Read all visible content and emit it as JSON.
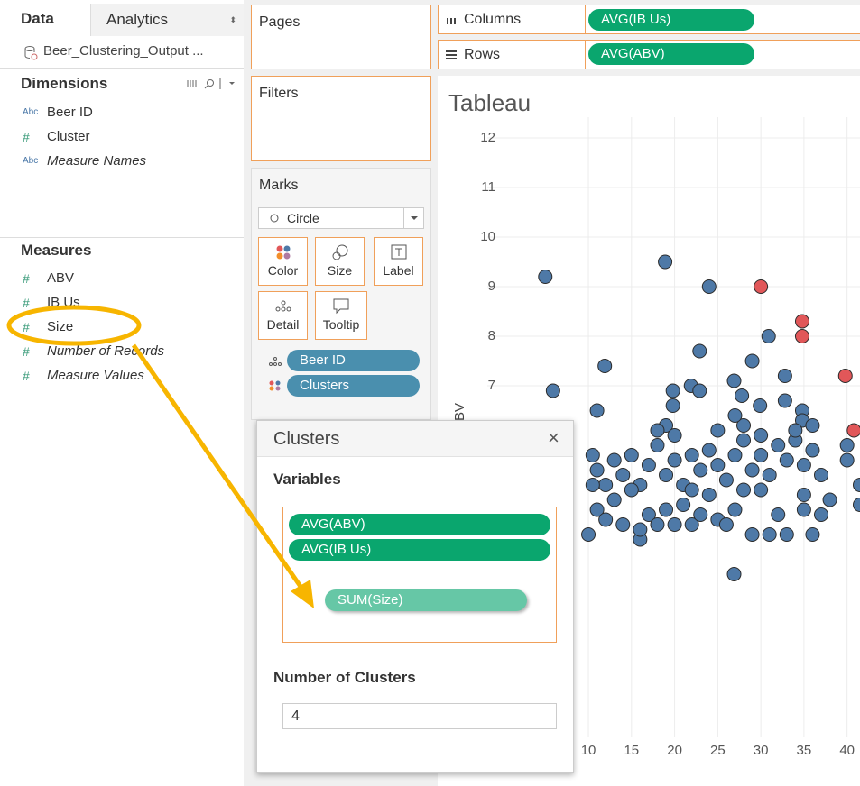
{
  "tabs": {
    "data": "Data",
    "analytics": "Analytics"
  },
  "datasource": "Beer_Clustering_Output ...",
  "dimensions": {
    "title": "Dimensions",
    "items": [
      {
        "icon": "Abc",
        "label": "Beer ID"
      },
      {
        "icon": "#",
        "label": "Cluster"
      },
      {
        "icon": "Abc",
        "label": "Measure Names"
      }
    ]
  },
  "measures": {
    "title": "Measures",
    "items": [
      {
        "icon": "#",
        "label": "ABV"
      },
      {
        "icon": "#",
        "label": "IB Us"
      },
      {
        "icon": "#",
        "label": "Size"
      },
      {
        "icon": "#",
        "label": "Number of Records"
      },
      {
        "icon": "#",
        "label": "Measure Values"
      }
    ]
  },
  "shelves": {
    "pages": "Pages",
    "filters": "Filters",
    "columns": {
      "label": "Columns",
      "pill": "AVG(IB Us)"
    },
    "rows": {
      "label": "Rows",
      "pill": "AVG(ABV)"
    }
  },
  "marks": {
    "title": "Marks",
    "mark_type": "Circle",
    "buttons": [
      "Color",
      "Size",
      "Label",
      "Detail",
      "Tooltip"
    ],
    "pills": [
      "Beer ID",
      "Clusters"
    ]
  },
  "chart_data": {
    "type": "scatter",
    "title": "Tableau",
    "y_label": "ABV",
    "xlim": [
      0,
      41.5
    ],
    "ylim": [
      0,
      12.2
    ],
    "xticks": [
      10,
      15,
      20,
      25,
      30,
      35,
      40
    ],
    "yticks": [
      7,
      8,
      9,
      10,
      11,
      12
    ],
    "grid": true,
    "series": [
      {
        "color": "#4e79a7",
        "x": [
          5,
          5.9,
          18.9,
          24,
          11.9,
          11,
          22.9,
          30.9,
          29,
          32.8,
          19.8,
          19.8,
          21.9,
          22.9,
          26.9,
          27.8,
          29.9,
          32.8,
          34.8,
          34.8,
          26.9,
          10.5,
          11,
          12,
          13,
          14,
          15,
          16,
          17,
          18,
          19,
          20,
          21,
          22,
          23,
          24,
          25,
          26,
          27,
          28,
          29,
          30,
          31,
          32,
          33,
          34,
          35,
          36,
          37,
          40,
          40,
          41.5,
          10,
          11,
          12,
          13,
          14,
          16,
          16,
          17,
          18,
          19,
          20,
          21,
          22,
          23,
          24,
          25,
          26,
          27,
          28,
          29,
          31,
          32,
          33,
          35,
          36,
          37,
          38,
          41.5,
          15,
          19,
          20,
          25,
          28,
          30,
          34,
          36,
          18,
          22,
          30,
          35,
          10.5,
          27
        ],
        "values": [
          9.2,
          6.9,
          9.5,
          9.0,
          7.4,
          6.5,
          7.7,
          8.0,
          7.5,
          7.2,
          6.9,
          6.6,
          7.0,
          6.9,
          7.1,
          6.8,
          6.6,
          6.7,
          6.5,
          6.3,
          3.2,
          5.6,
          5.3,
          5.0,
          5.5,
          5.2,
          5.6,
          5.0,
          5.4,
          5.8,
          5.2,
          5.5,
          5.0,
          5.6,
          5.3,
          5.7,
          5.4,
          5.1,
          5.6,
          5.9,
          5.3,
          5.6,
          5.2,
          5.8,
          5.5,
          5.9,
          5.4,
          5.7,
          5.2,
          5.5,
          5.8,
          5.0,
          4.0,
          4.5,
          4.3,
          4.7,
          4.2,
          3.9,
          4.1,
          4.4,
          4.2,
          4.5,
          4.2,
          4.6,
          4.2,
          4.4,
          4.8,
          4.3,
          4.2,
          4.5,
          4.9,
          4.0,
          4.0,
          4.4,
          4.0,
          4.5,
          4.0,
          4.4,
          4.7,
          4.6,
          4.9,
          6.2,
          6.0,
          6.1,
          6.2,
          6.0,
          6.1,
          6.2,
          6.1,
          4.9,
          4.9,
          4.8,
          5.0,
          6.4
        ]
      },
      {
        "color": "#e15759",
        "x": [
          30,
          34.8,
          34.8,
          39.8,
          40.8
        ],
        "values": [
          9.0,
          8.3,
          8.0,
          7.2,
          6.1
        ]
      }
    ]
  },
  "dialog": {
    "title": "Clusters",
    "close": "×",
    "variables_label": "Variables",
    "variables": [
      "AVG(ABV)",
      "AVG(IB Us)",
      "SUM(Size)"
    ],
    "clusters_label": "Number of Clusters",
    "clusters": 4
  }
}
